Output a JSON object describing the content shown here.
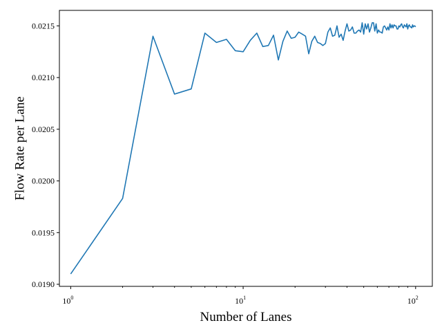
{
  "chart_data": {
    "type": "line",
    "xlabel": "Number of Lanes",
    "ylabel": "Flow Rate per Lane",
    "xscale": "log",
    "xlim": [
      0.86,
      125
    ],
    "ylim": [
      0.01898,
      0.02165
    ],
    "grid": false,
    "legend": "none",
    "line_color": "#1f77b4",
    "x_ticks": [
      {
        "value": 1,
        "base": "10",
        "exp": "0"
      },
      {
        "value": 10,
        "base": "10",
        "exp": "1"
      },
      {
        "value": 100,
        "base": "10",
        "exp": "2"
      }
    ],
    "y_ticks": [
      {
        "value": 0.019,
        "label": "0.0190"
      },
      {
        "value": 0.0195,
        "label": "0.0195"
      },
      {
        "value": 0.02,
        "label": "0.0200"
      },
      {
        "value": 0.0205,
        "label": "0.0205"
      },
      {
        "value": 0.021,
        "label": "0.0210"
      },
      {
        "value": 0.0215,
        "label": "0.0215"
      }
    ],
    "series": [
      {
        "x": [
          1,
          2,
          3,
          4,
          5,
          6,
          7,
          8,
          9,
          10,
          11,
          12,
          13,
          14,
          15,
          16,
          17,
          18,
          19,
          20,
          21,
          22,
          23,
          24,
          25,
          26,
          27,
          28,
          29,
          30,
          31,
          32,
          33,
          34,
          35,
          36,
          37,
          38,
          39,
          40,
          41,
          42,
          43,
          44,
          45,
          46,
          47,
          48,
          49,
          50,
          51,
          52,
          53,
          54,
          55,
          56,
          57,
          58,
          59,
          60,
          61,
          62,
          63,
          64,
          65,
          66,
          67,
          68,
          69,
          70,
          71,
          72,
          73,
          74,
          75,
          76,
          77,
          78,
          79,
          80,
          81,
          82,
          83,
          84,
          85,
          86,
          87,
          88,
          89,
          90,
          91,
          92,
          93,
          94,
          95,
          96,
          97,
          98,
          99,
          100
        ],
        "y": [
          0.0191,
          0.01983,
          0.0214,
          0.02084,
          0.02089,
          0.02143,
          0.02134,
          0.02137,
          0.02126,
          0.02125,
          0.02136,
          0.02143,
          0.0213,
          0.02131,
          0.02141,
          0.02117,
          0.02135,
          0.02145,
          0.02138,
          0.02139,
          0.02144,
          0.02142,
          0.0214,
          0.02123,
          0.02135,
          0.0214,
          0.02134,
          0.02133,
          0.02131,
          0.02133,
          0.02144,
          0.02148,
          0.0214,
          0.02141,
          0.0215,
          0.02139,
          0.02142,
          0.02136,
          0.02145,
          0.02152,
          0.02145,
          0.02146,
          0.02149,
          0.02143,
          0.02143,
          0.02145,
          0.02146,
          0.02144,
          0.02153,
          0.02142,
          0.02152,
          0.02147,
          0.02152,
          0.02144,
          0.02148,
          0.02153,
          0.02153,
          0.02145,
          0.02152,
          0.02143,
          0.02146,
          0.02144,
          0.02144,
          0.02143,
          0.02149,
          0.0215,
          0.02148,
          0.02146,
          0.02149,
          0.02146,
          0.02152,
          0.02148,
          0.02151,
          0.02148,
          0.02151,
          0.0215,
          0.0215,
          0.02147,
          0.02147,
          0.0215,
          0.02149,
          0.02151,
          0.02152,
          0.02149,
          0.02148,
          0.02151,
          0.0215,
          0.02149,
          0.02152,
          0.02147,
          0.0215,
          0.02151,
          0.02149,
          0.02149,
          0.02148,
          0.02151,
          0.02149,
          0.0215,
          0.0215,
          0.02149
        ]
      }
    ]
  }
}
